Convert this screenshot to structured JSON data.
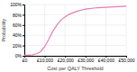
{
  "chart_data": {
    "type": "line",
    "xlabel": "Cost per QALY Threshold",
    "ylabel": "Probability",
    "x": [
      0,
      2000,
      4000,
      6000,
      8000,
      10000,
      12000,
      14000,
      16000,
      18000,
      20000,
      22000,
      24000,
      26000,
      28000,
      30000,
      32000,
      34000,
      36000,
      38000,
      40000,
      42000,
      44000,
      46000,
      48000,
      50000
    ],
    "values": [
      0.01,
      0.01,
      0.02,
      0.04,
      0.08,
      0.18,
      0.32,
      0.48,
      0.6,
      0.7,
      0.76,
      0.81,
      0.84,
      0.87,
      0.89,
      0.91,
      0.92,
      0.93,
      0.935,
      0.94,
      0.945,
      0.95,
      0.955,
      0.96,
      0.963,
      0.966
    ],
    "color": "#e87cb0",
    "xlim": [
      0,
      50000
    ],
    "ylim": [
      0,
      1.0
    ],
    "xticks": [
      {
        "value": 0,
        "label": "£0"
      },
      {
        "value": 10000,
        "label": "£10,000"
      },
      {
        "value": 20000,
        "label": "£20,000"
      },
      {
        "value": 30000,
        "label": "£30,000"
      },
      {
        "value": 40000,
        "label": "£40,000"
      },
      {
        "value": 50000,
        "label": "£50,000"
      }
    ],
    "yticks": [
      {
        "value": 0.0,
        "label": "0%"
      },
      {
        "value": 0.2,
        "label": "20%"
      },
      {
        "value": 0.4,
        "label": "40%"
      },
      {
        "value": 0.6,
        "label": "60%"
      },
      {
        "value": 0.8,
        "label": "80%"
      },
      {
        "value": 1.0,
        "label": "100%"
      }
    ],
    "grid": true
  }
}
